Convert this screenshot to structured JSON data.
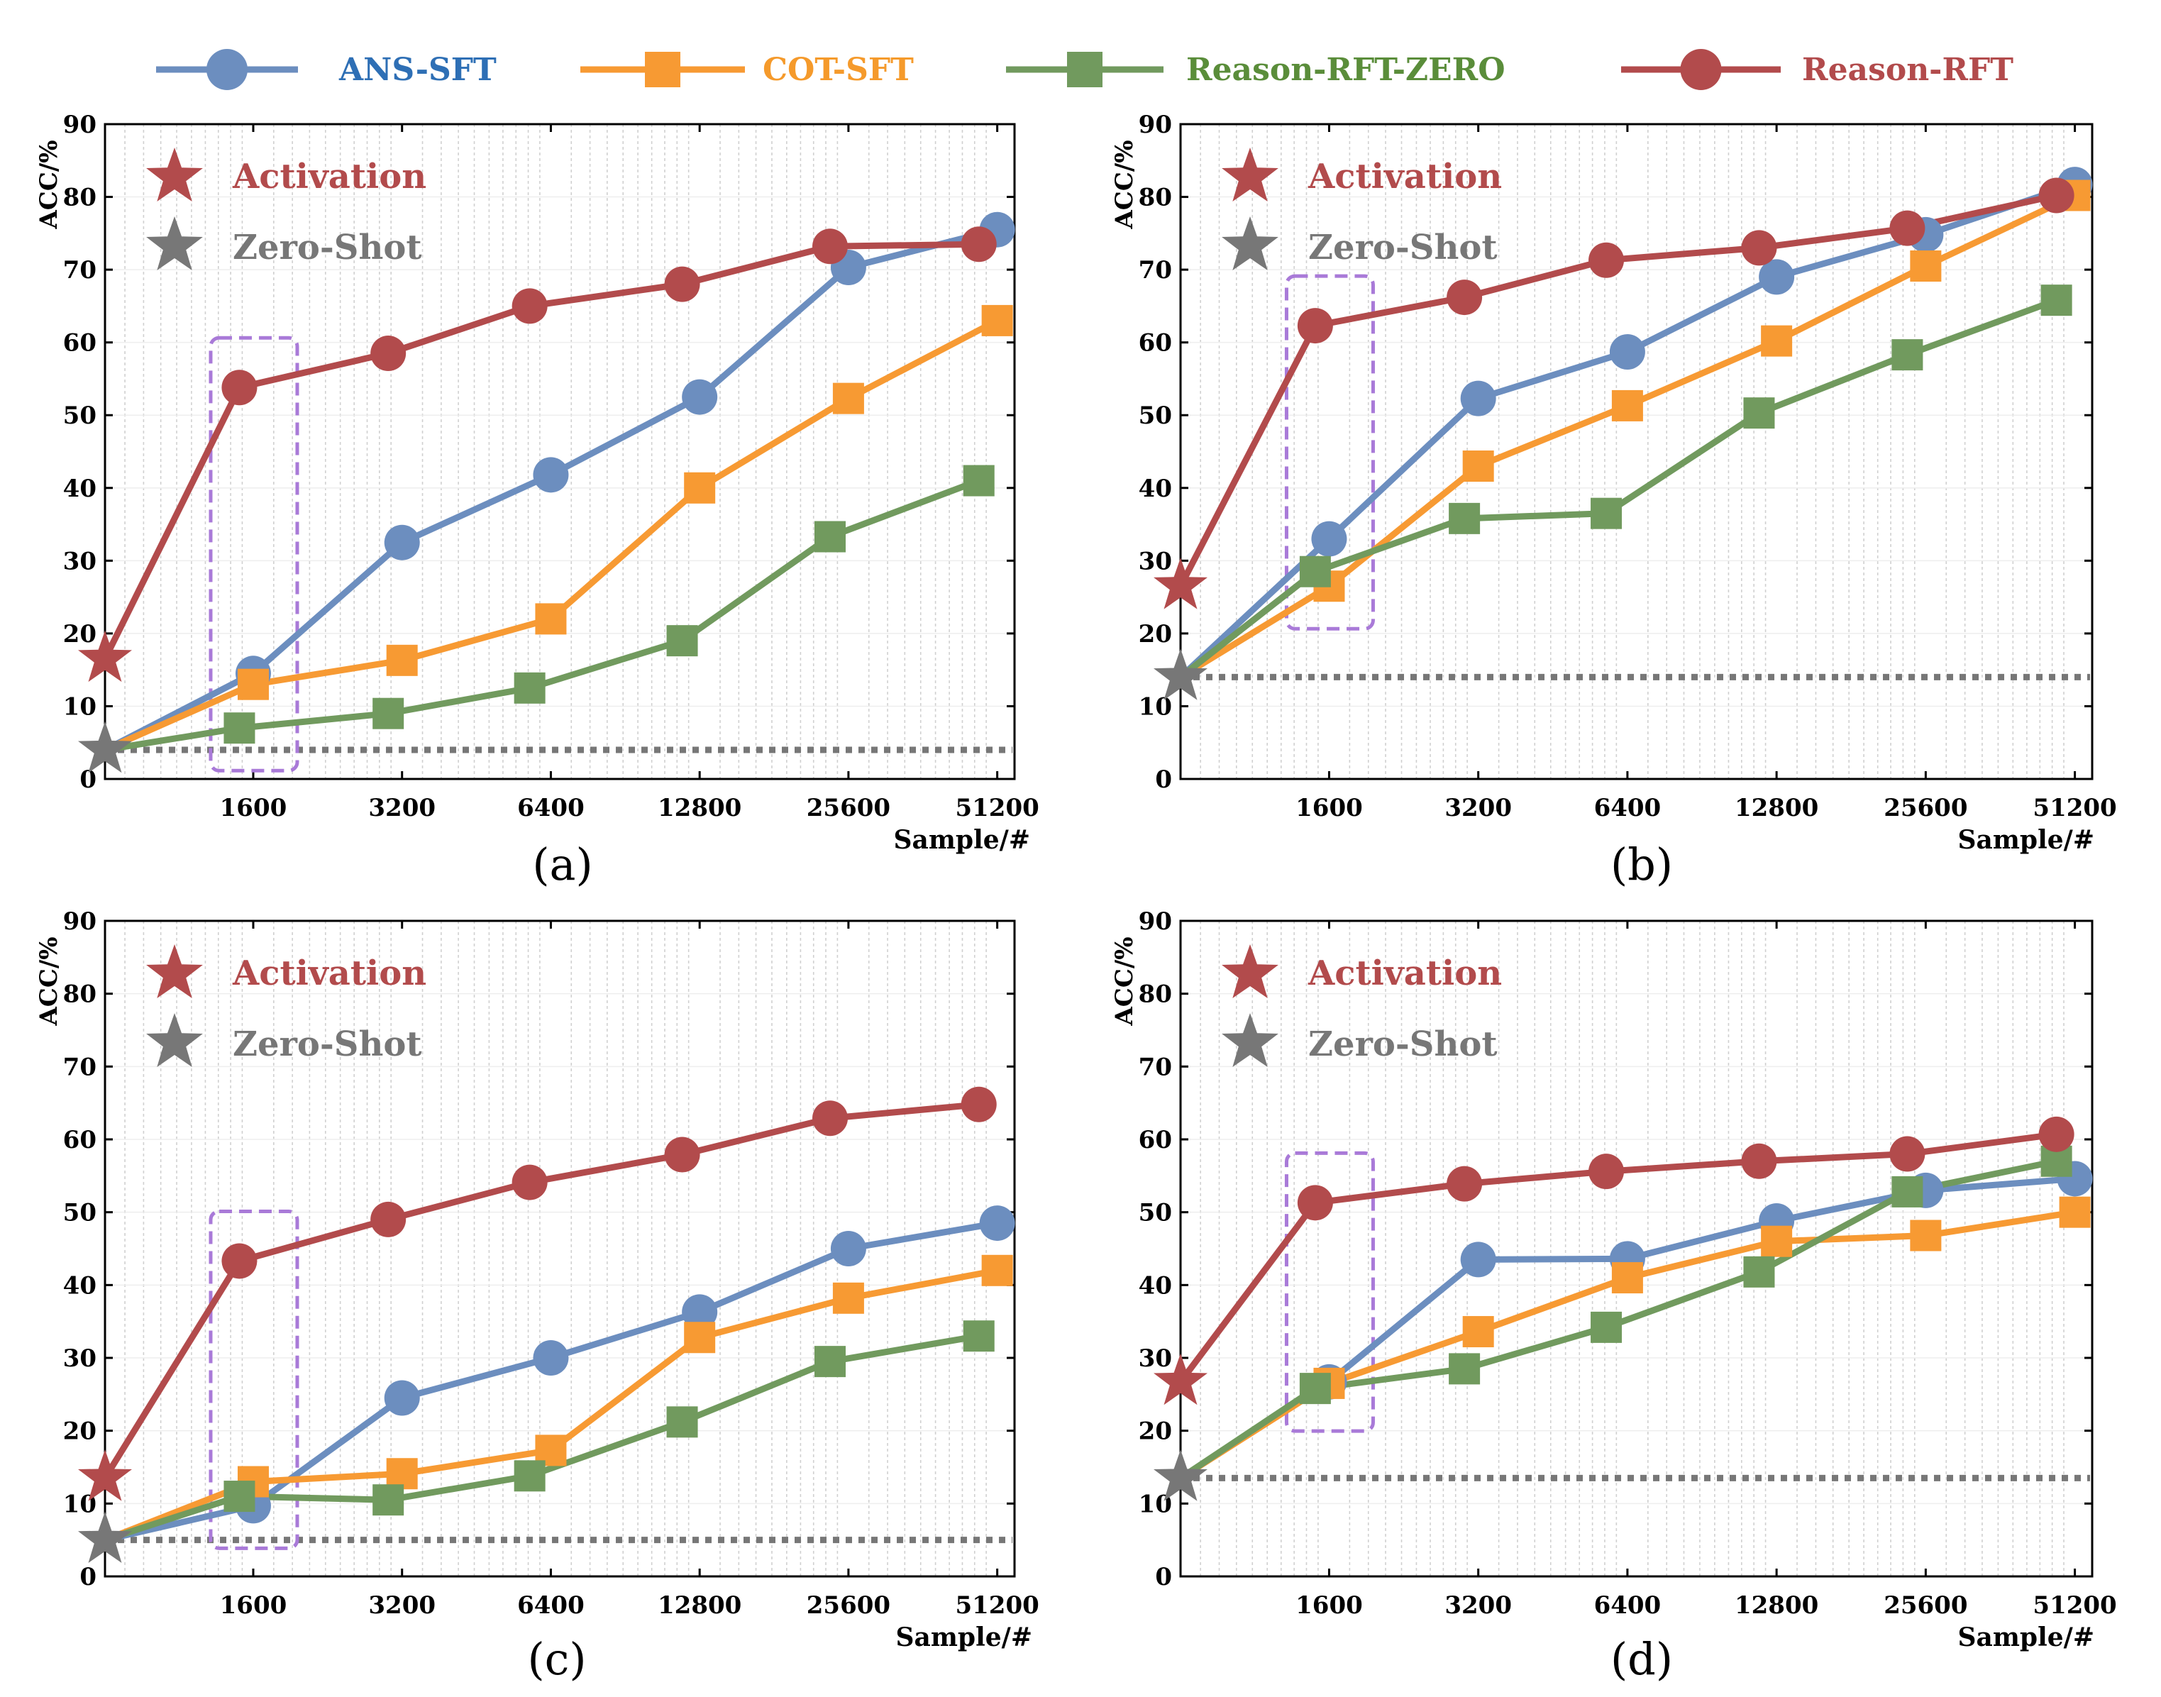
{
  "colors": {
    "ans_sft": "#6c8ebf",
    "cot_sft": "#f79a33",
    "zero": "#719a5e",
    "rft": "#b24b4c",
    "zero_shot": "#777777",
    "box": "#a97ad8",
    "legend_ans_text": "#2e6fb5",
    "legend_cot_text": "#f59a2b",
    "legend_zero_text": "#5a8d3a",
    "legend_rft_text": "#b24b4c",
    "grid": "#d0d0d0"
  },
  "legend": {
    "ans_sft": "ANS-SFT",
    "cot_sft": "COT-SFT",
    "zero": "Reason-RFT-ZERO",
    "rft": "Reason-RFT"
  },
  "chart_data": [
    {
      "type": "line",
      "panel_label": "(a)",
      "ylabel": "ACC/%",
      "xlabel": "Sample/#",
      "x_scale": "log2",
      "xticks": [
        1600,
        3200,
        6400,
        12800,
        25600,
        51200
      ],
      "ylim": [
        0,
        90
      ],
      "yticks": [
        0,
        10,
        20,
        30,
        40,
        50,
        60,
        70,
        80,
        90
      ],
      "grid": true,
      "inner_legend": {
        "activation": "Activation",
        "zero_shot": "Zero-Shot"
      },
      "activation": 16.5,
      "zero_shot": 4,
      "highlight": "1600",
      "series": [
        {
          "key": "ans_sft",
          "marker": "circle",
          "x": [
            1600,
            3200,
            6400,
            12800,
            25600,
            51200
          ],
          "values": [
            14.5,
            32.5,
            41.8,
            52.5,
            70.3,
            75.5
          ]
        },
        {
          "key": "cot_sft",
          "marker": "square",
          "x": [
            1600,
            3200,
            6400,
            12800,
            25600,
            51200
          ],
          "values": [
            13,
            16.3,
            22,
            40,
            52.3,
            63
          ]
        },
        {
          "key": "zero",
          "marker": "square",
          "x": [
            1500,
            3000,
            5800,
            11800,
            23500,
            47000
          ],
          "values": [
            7,
            9,
            12.5,
            19,
            33.3,
            41
          ]
        },
        {
          "key": "rft",
          "marker": "circle",
          "x": [
            1500,
            3000,
            5800,
            11800,
            23500,
            47000
          ],
          "values": [
            53.8,
            58.5,
            65,
            68,
            73.2,
            73.5
          ]
        }
      ]
    },
    {
      "type": "line",
      "panel_label": "(b)",
      "ylabel": "ACC/%",
      "xlabel": "Sample/#",
      "x_scale": "log2",
      "xticks": [
        1600,
        3200,
        6400,
        12800,
        25600,
        51200
      ],
      "ylim": [
        0,
        90
      ],
      "yticks": [
        0,
        10,
        20,
        30,
        40,
        50,
        60,
        70,
        80,
        90
      ],
      "grid": true,
      "inner_legend": {
        "activation": "Activation",
        "zero_shot": "Zero-Shot"
      },
      "activation": 26.5,
      "zero_shot": 14,
      "highlight": "1600",
      "series": [
        {
          "key": "ans_sft",
          "marker": "circle",
          "x": [
            1600,
            3200,
            6400,
            12800,
            25600,
            51200
          ],
          "values": [
            33,
            52.3,
            58.7,
            69,
            74.8,
            81.7
          ]
        },
        {
          "key": "cot_sft",
          "marker": "square",
          "x": [
            1600,
            3200,
            6400,
            12800,
            25600,
            51200
          ],
          "values": [
            26.5,
            43,
            51.3,
            60.2,
            70.5,
            80.2
          ]
        },
        {
          "key": "zero",
          "marker": "square",
          "x": [
            1500,
            3000,
            5800,
            11800,
            23500,
            47000
          ],
          "values": [
            28.5,
            35.8,
            36.5,
            50.3,
            58.3,
            65.8
          ]
        },
        {
          "key": "rft",
          "marker": "circle",
          "x": [
            1500,
            3000,
            5800,
            11800,
            23500,
            47000
          ],
          "values": [
            62.3,
            66.2,
            71.3,
            73,
            75.7,
            80.2
          ]
        }
      ]
    },
    {
      "type": "line",
      "panel_label": "(c)",
      "ylabel": "ACC/%",
      "xlabel": "Sample/#",
      "x_scale": "log2",
      "xticks": [
        1600,
        3200,
        6400,
        12800,
        25600,
        51200
      ],
      "ylim": [
        0,
        90
      ],
      "yticks": [
        0,
        10,
        20,
        30,
        40,
        50,
        60,
        70,
        80,
        90
      ],
      "grid": true,
      "inner_legend": {
        "activation": "Activation",
        "zero_shot": "Zero-Shot"
      },
      "activation": 13.5,
      "zero_shot": 5,
      "highlight": "1600",
      "series": [
        {
          "key": "ans_sft",
          "marker": "circle",
          "x": [
            1600,
            3200,
            6400,
            12800,
            25600,
            51200
          ],
          "values": [
            9.7,
            24.5,
            30,
            36.3,
            45,
            48.5
          ]
        },
        {
          "key": "cot_sft",
          "marker": "square",
          "x": [
            1600,
            3200,
            6400,
            12800,
            25600,
            51200
          ],
          "values": [
            13,
            14.1,
            17.3,
            32.8,
            38.2,
            42
          ]
        },
        {
          "key": "zero",
          "marker": "square",
          "x": [
            1500,
            3000,
            5800,
            11800,
            23500,
            47000
          ],
          "values": [
            11,
            10.5,
            13.8,
            21.2,
            29.5,
            33
          ]
        },
        {
          "key": "rft",
          "marker": "circle",
          "x": [
            1500,
            3000,
            5800,
            11800,
            23500,
            47000
          ],
          "values": [
            43.3,
            49,
            54.1,
            57.9,
            62.9,
            64.8
          ]
        }
      ]
    },
    {
      "type": "line",
      "panel_label": "(d)",
      "ylabel": "ACC/%",
      "xlabel": "Sample/#",
      "x_scale": "log2",
      "xticks": [
        1600,
        3200,
        6400,
        12800,
        25600,
        51200
      ],
      "ylim": [
        0,
        90
      ],
      "yticks": [
        0,
        10,
        20,
        30,
        40,
        50,
        60,
        70,
        80,
        90
      ],
      "grid": true,
      "inner_legend": {
        "activation": "Activation",
        "zero_shot": "Zero-Shot"
      },
      "activation": 26.7,
      "zero_shot": 13.5,
      "highlight": "1600",
      "series": [
        {
          "key": "ans_sft",
          "marker": "circle",
          "x": [
            1600,
            3200,
            6400,
            12800,
            25600,
            51200
          ],
          "values": [
            26.7,
            43.5,
            43.6,
            48.8,
            53,
            54.6
          ]
        },
        {
          "key": "cot_sft",
          "marker": "square",
          "x": [
            1600,
            3200,
            6400,
            12800,
            25600,
            51200
          ],
          "values": [
            26.5,
            33.6,
            41,
            46,
            46.8,
            50
          ]
        },
        {
          "key": "zero",
          "marker": "square",
          "x": [
            1500,
            3000,
            5800,
            11800,
            23500,
            47000
          ],
          "values": [
            25.8,
            28.5,
            34.2,
            41.8,
            52.8,
            57
          ]
        },
        {
          "key": "rft",
          "marker": "circle",
          "x": [
            1500,
            3000,
            5800,
            11800,
            23500,
            47000
          ],
          "values": [
            51.3,
            53.9,
            55.6,
            57,
            58,
            60.7
          ]
        }
      ]
    }
  ]
}
